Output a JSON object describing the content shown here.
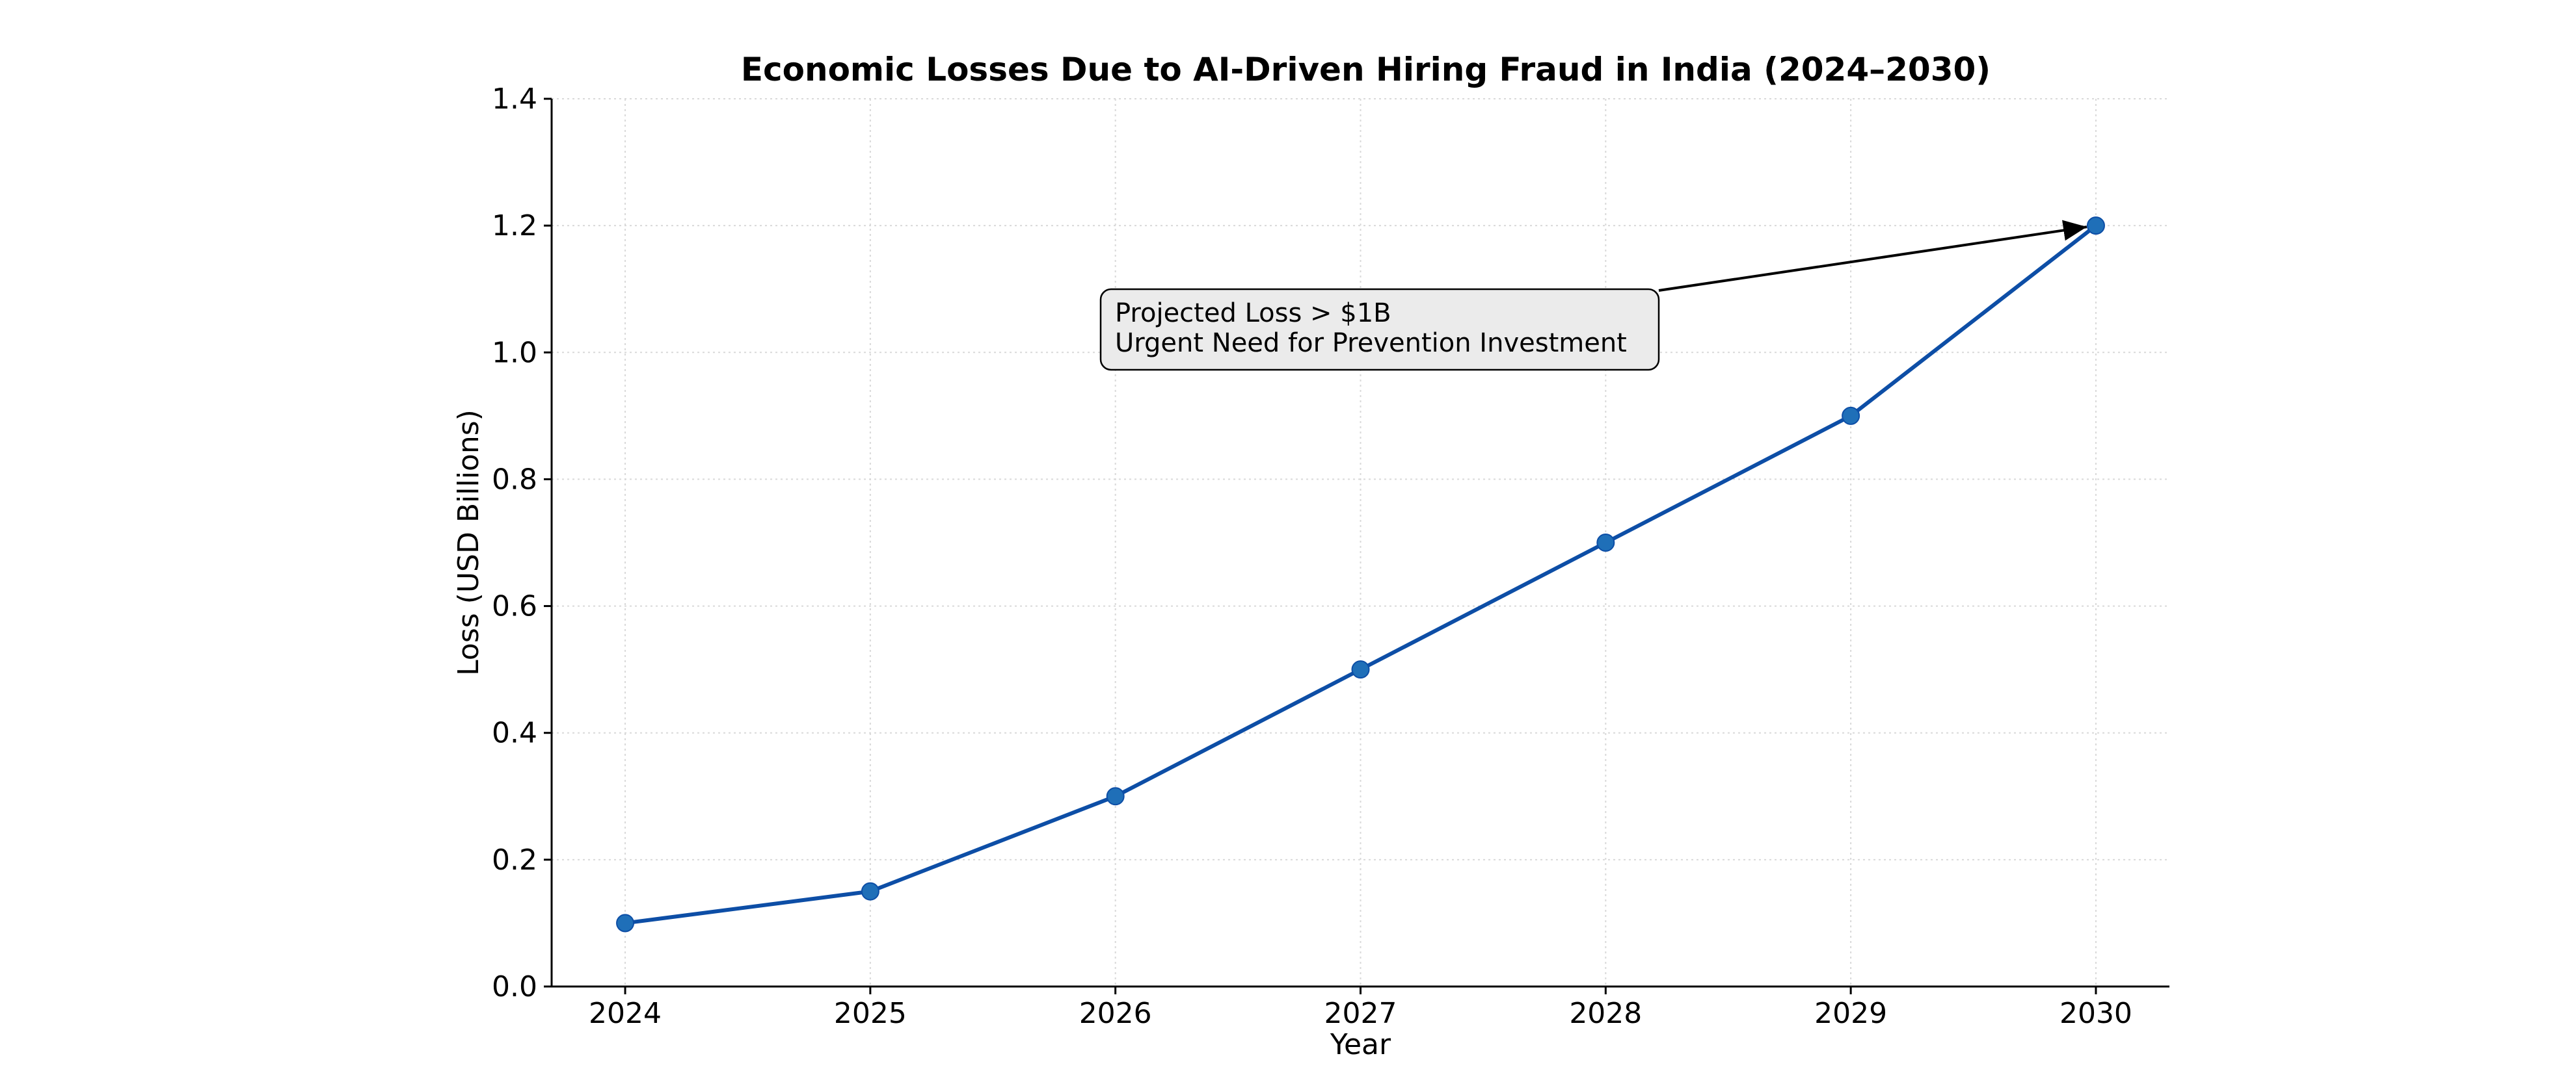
{
  "chart_data": {
    "type": "line",
    "title": "Economic Losses Due to AI-Driven Hiring Fraud in India (2024–2030)",
    "xlabel": "Year",
    "ylabel": "Loss (USD Billions)",
    "x": [
      2024,
      2025,
      2026,
      2027,
      2028,
      2029,
      2030
    ],
    "x_tick_labels": [
      "2024",
      "2025",
      "2026",
      "2027",
      "2028",
      "2029",
      "2030"
    ],
    "y_tick_labels": [
      "0.0",
      "0.2",
      "0.4",
      "0.6",
      "0.8",
      "1.0",
      "1.2",
      "1.4"
    ],
    "y_ticks": [
      0.0,
      0.2,
      0.4,
      0.6,
      0.8,
      1.0,
      1.2,
      1.4
    ],
    "ylim": [
      0,
      1.4
    ],
    "xlim": [
      2023.7,
      2030.3
    ],
    "grid": true,
    "series": [
      {
        "values": [
          0.1,
          0.15,
          0.3,
          0.5,
          0.7,
          0.9,
          1.2
        ],
        "color": "#0d4ea6",
        "marker_color": "#1f6fb8",
        "marker": "circle"
      }
    ],
    "annotation": {
      "lines": [
        "Projected Loss > $1B",
        "Urgent Need for Prevention Investment"
      ],
      "target_x": 2030,
      "target_y": 1.2
    }
  }
}
